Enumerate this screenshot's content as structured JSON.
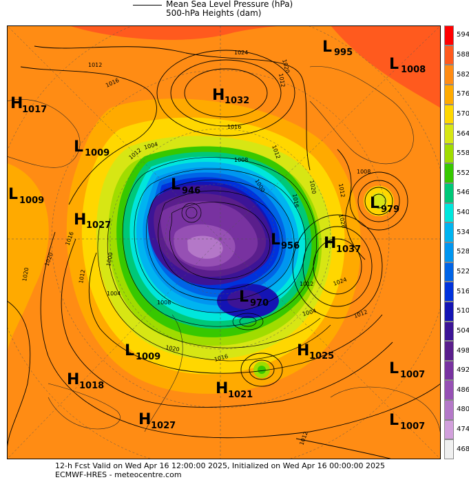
{
  "legend": {
    "mslp_label": "Mean Sea Level Pressure (hPa)",
    "heights_label": "500-hPa Heights (dam)"
  },
  "colorbar": {
    "levels": [
      "594",
      "588",
      "582",
      "576",
      "570",
      "564",
      "558",
      "552",
      "546",
      "540",
      "534",
      "528",
      "522",
      "516",
      "510",
      "504",
      "498",
      "492",
      "486",
      "480",
      "474",
      "468"
    ],
    "colors": [
      "#ff0000",
      "#ff5a1e",
      "#ff8c14",
      "#ffaa00",
      "#ffd700",
      "#d7e614",
      "#a0dc00",
      "#37c800",
      "#00c878",
      "#00e6dc",
      "#00b4f0",
      "#0096f0",
      "#0064e6",
      "#0032dc",
      "#1414b4",
      "#3c1496",
      "#5a1e8c",
      "#7832a0",
      "#9650b4",
      "#b478c8",
      "#d2a0dc",
      "#f0f0f0"
    ]
  },
  "map": {
    "systems": [
      {
        "type": "L",
        "value": "995"
      },
      {
        "type": "L",
        "value": "1008"
      },
      {
        "type": "H",
        "value": "1032"
      },
      {
        "type": "H",
        "value": "1017"
      },
      {
        "type": "L",
        "value": "1009"
      },
      {
        "type": "L",
        "value": "1009"
      },
      {
        "type": "L",
        "value": "946"
      },
      {
        "type": "H",
        "value": "1027"
      },
      {
        "type": "L",
        "value": "979"
      },
      {
        "type": "L",
        "value": "956"
      },
      {
        "type": "H",
        "value": "1037"
      },
      {
        "type": "L",
        "value": "970"
      },
      {
        "type": "L",
        "value": "1009"
      },
      {
        "type": "H",
        "value": "1025"
      },
      {
        "type": "H",
        "value": "1018"
      },
      {
        "type": "H",
        "value": "1021"
      },
      {
        "type": "L",
        "value": "1007"
      },
      {
        "type": "H",
        "value": "1027"
      },
      {
        "type": "L",
        "value": "1007"
      }
    ],
    "isobar_labels": [
      "1012",
      "1016",
      "1020",
      "1024",
      "1012",
      "1016",
      "1012",
      "1020",
      "1004",
      "1012",
      "1008",
      "1016",
      "1000",
      "1016",
      "1020",
      "1028",
      "1008",
      "1012",
      "1020",
      "1024",
      "1012",
      "1004",
      "1000",
      "1008",
      "1012",
      "1012",
      "1016",
      "1020",
      "1004",
      "1012"
    ],
    "colors": {
      "ocean_orange": "#ff8c14",
      "land_orange": "#ffaa00",
      "vortex_purple": "#5a1e8c",
      "contour": "#000000"
    }
  },
  "footer": {
    "valid_line": "12-h Fcst Valid on Wed Apr 16 12:00:00 2025, Initialized on Wed Apr 16 00:00:00 2025",
    "source_line": "ECMWF-HRES - meteocentre.com"
  }
}
